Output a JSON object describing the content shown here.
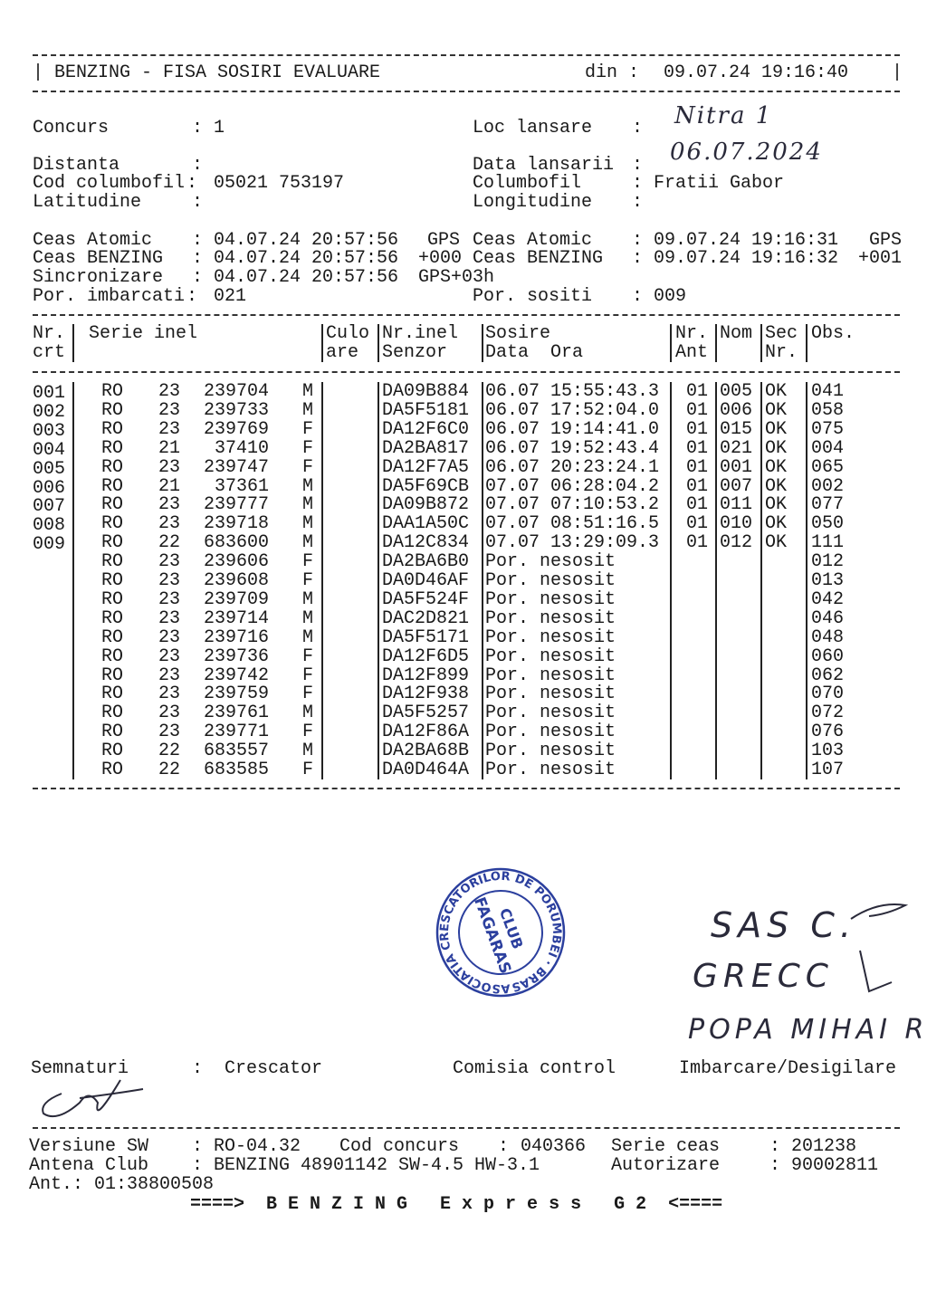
{
  "header": {
    "title": "BENZING - FISA SOSIRI EVALUARE",
    "din_label": "din :",
    "din_value": "09.07.24 19:16:40"
  },
  "info": {
    "concurs_label": "Concurs",
    "concurs_value": "1",
    "loc_lansare_label": "Loc lansare",
    "loc_lansare_value": "Nitra 1",
    "distanta_label": "Distanta",
    "distanta_value": "",
    "data_lansarii_label": "Data lansarii",
    "data_lansarii_value": "06.07.2024",
    "cod_columbofil_label": "Cod columbofil",
    "cod_columbofil_value": "05021 753197",
    "columbofil_label": "Columbofil",
    "columbofil_value": "Fratii Gabor",
    "latitudine_label": "Latitudine",
    "latitudine_value": "",
    "longitudine_label": "Longitudine",
    "longitudine_value": ""
  },
  "clocks": {
    "left": [
      {
        "label": "Ceas Atomic",
        "value": "04.07.24 20:57:56",
        "suffix": "GPS"
      },
      {
        "label": "Ceas BENZING",
        "value": "04.07.24 20:57:56",
        "suffix": "+000"
      },
      {
        "label": "Sincronizare",
        "value": "04.07.24 20:57:56",
        "suffix": "GPS+03h"
      },
      {
        "label": "Por. imbarcati",
        "value": "021",
        "suffix": ""
      }
    ],
    "right": [
      {
        "label": "Ceas Atomic",
        "value": "09.07.24 19:16:31",
        "suffix": "GPS"
      },
      {
        "label": "Ceas BENZING",
        "value": "09.07.24 19:16:32",
        "suffix": "+001"
      },
      {
        "label": "Por. sositi",
        "value": "009",
        "suffix": ""
      }
    ]
  },
  "table": {
    "headers": {
      "nr1": "Nr.",
      "nr2": "crt",
      "serie": "Serie inel",
      "culo1": "Culo",
      "culo2": "are",
      "inel1": "Nr.inel",
      "inel2": "Senzor",
      "sosire1": "Sosire",
      "sosire2": "Data  Ora",
      "ant1": "Nr.",
      "ant2": "Ant",
      "nom": "Nom",
      "sec1": "Sec",
      "sec2": "Nr.",
      "obs": "Obs."
    },
    "rows": [
      {
        "nr": "001",
        "country": "RO",
        "year": "23",
        "ring": "239704",
        "sex": "M",
        "color": "",
        "sensor": "DA09B884",
        "sosire": "06.07 15:55:43.3",
        "ant": "01",
        "nom": "005",
        "sec": "OK",
        "obs": "041"
      },
      {
        "nr": "002",
        "country": "RO",
        "year": "23",
        "ring": "239733",
        "sex": "M",
        "color": "",
        "sensor": "DA5F5181",
        "sosire": "06.07 17:52:04.0",
        "ant": "01",
        "nom": "006",
        "sec": "OK",
        "obs": "058"
      },
      {
        "nr": "003",
        "country": "RO",
        "year": "23",
        "ring": "239769",
        "sex": "F",
        "color": "",
        "sensor": "DA12F6C0",
        "sosire": "06.07 19:14:41.0",
        "ant": "01",
        "nom": "015",
        "sec": "OK",
        "obs": "075"
      },
      {
        "nr": "004",
        "country": "RO",
        "year": "21",
        "ring": "37410",
        "sex": "F",
        "color": "",
        "sensor": "DA2BA817",
        "sosire": "06.07 19:52:43.4",
        "ant": "01",
        "nom": "021",
        "sec": "OK",
        "obs": "004"
      },
      {
        "nr": "005",
        "country": "RO",
        "year": "23",
        "ring": "239747",
        "sex": "F",
        "color": "",
        "sensor": "DA12F7A5",
        "sosire": "06.07 20:23:24.1",
        "ant": "01",
        "nom": "001",
        "sec": "OK",
        "obs": "065"
      },
      {
        "nr": "006",
        "country": "RO",
        "year": "21",
        "ring": "37361",
        "sex": "M",
        "color": "",
        "sensor": "DA5F69CB",
        "sosire": "07.07 06:28:04.2",
        "ant": "01",
        "nom": "007",
        "sec": "OK",
        "obs": "002"
      },
      {
        "nr": "007",
        "country": "RO",
        "year": "23",
        "ring": "239777",
        "sex": "M",
        "color": "",
        "sensor": "DA09B872",
        "sosire": "07.07 07:10:53.2",
        "ant": "01",
        "nom": "011",
        "sec": "OK",
        "obs": "077"
      },
      {
        "nr": "008",
        "country": "RO",
        "year": "23",
        "ring": "239718",
        "sex": "M",
        "color": "",
        "sensor": "DAA1A50C",
        "sosire": "07.07 08:51:16.5",
        "ant": "01",
        "nom": "010",
        "sec": "OK",
        "obs": "050"
      },
      {
        "nr": "009",
        "country": "RO",
        "year": "22",
        "ring": "683600",
        "sex": "M",
        "color": "",
        "sensor": "DA12C834",
        "sosire": "07.07 13:29:09.3",
        "ant": "01",
        "nom": "012",
        "sec": "OK",
        "obs": "111"
      },
      {
        "nr": "",
        "country": "RO",
        "year": "23",
        "ring": "239606",
        "sex": "F",
        "color": "",
        "sensor": "DA2BA6B0",
        "sosire": "Por. nesosit",
        "ant": "",
        "nom": "",
        "sec": "",
        "obs": "012"
      },
      {
        "nr": "",
        "country": "RO",
        "year": "23",
        "ring": "239608",
        "sex": "F",
        "color": "",
        "sensor": "DA0D46AF",
        "sosire": "Por. nesosit",
        "ant": "",
        "nom": "",
        "sec": "",
        "obs": "013"
      },
      {
        "nr": "",
        "country": "RO",
        "year": "23",
        "ring": "239709",
        "sex": "M",
        "color": "",
        "sensor": "DA5F524F",
        "sosire": "Por. nesosit",
        "ant": "",
        "nom": "",
        "sec": "",
        "obs": "042"
      },
      {
        "nr": "",
        "country": "RO",
        "year": "23",
        "ring": "239714",
        "sex": "M",
        "color": "",
        "sensor": "DAC2D821",
        "sosire": "Por. nesosit",
        "ant": "",
        "nom": "",
        "sec": "",
        "obs": "046"
      },
      {
        "nr": "",
        "country": "RO",
        "year": "23",
        "ring": "239716",
        "sex": "M",
        "color": "",
        "sensor": "DA5F5171",
        "sosire": "Por. nesosit",
        "ant": "",
        "nom": "",
        "sec": "",
        "obs": "048"
      },
      {
        "nr": "",
        "country": "RO",
        "year": "23",
        "ring": "239736",
        "sex": "F",
        "color": "",
        "sensor": "DA12F6D5",
        "sosire": "Por. nesosit",
        "ant": "",
        "nom": "",
        "sec": "",
        "obs": "060"
      },
      {
        "nr": "",
        "country": "RO",
        "year": "23",
        "ring": "239742",
        "sex": "F",
        "color": "",
        "sensor": "DA12F899",
        "sosire": "Por. nesosit",
        "ant": "",
        "nom": "",
        "sec": "",
        "obs": "062"
      },
      {
        "nr": "",
        "country": "RO",
        "year": "23",
        "ring": "239759",
        "sex": "F",
        "color": "",
        "sensor": "DA12F938",
        "sosire": "Por. nesosit",
        "ant": "",
        "nom": "",
        "sec": "",
        "obs": "070"
      },
      {
        "nr": "",
        "country": "RO",
        "year": "23",
        "ring": "239761",
        "sex": "M",
        "color": "",
        "sensor": "DA5F5257",
        "sosire": "Por. nesosit",
        "ant": "",
        "nom": "",
        "sec": "",
        "obs": "072"
      },
      {
        "nr": "",
        "country": "RO",
        "year": "23",
        "ring": "239771",
        "sex": "F",
        "color": "",
        "sensor": "DA12F86A",
        "sosire": "Por. nesosit",
        "ant": "",
        "nom": "",
        "sec": "",
        "obs": "076"
      },
      {
        "nr": "",
        "country": "RO",
        "year": "22",
        "ring": "683557",
        "sex": "M",
        "color": "",
        "sensor": "DA2BA68B",
        "sosire": "Por. nesosit",
        "ant": "",
        "nom": "",
        "sec": "",
        "obs": "103"
      },
      {
        "nr": "",
        "country": "RO",
        "year": "22",
        "ring": "683585",
        "sex": "F",
        "color": "",
        "sensor": "DA0D464A",
        "sosire": "Por. nesosit",
        "ant": "",
        "nom": "",
        "sec": "",
        "obs": "107"
      }
    ]
  },
  "stamp": {
    "outer_text": "ASOCIATIA CRESCATORILOR DE PORUMBEI",
    "club": "CLUB",
    "city": "FAGARAS",
    "region": "BRASOV"
  },
  "handwritten_signatures": [
    "SAS C.",
    "GRECC",
    "POPA MIHAI R"
  ],
  "signatures": {
    "label": "Semnaturi",
    "crescator": "Crescator",
    "comisia": "Comisia control",
    "imbarcare": "Imbarcare/Desigilare"
  },
  "footer": {
    "versiune_label": "Versiune SW",
    "versiune_value": "RO-04.32",
    "cod_concurs_label": "Cod concurs",
    "cod_concurs_value": "040366",
    "serie_ceas_label": "Serie ceas",
    "serie_ceas_value": "201238",
    "antena_label": "Antena Club",
    "antena_value": "BENZING 48901142 SW-4.5 HW-3.1",
    "autorizare_label": "Autorizare",
    "autorizare_value": "90002811",
    "ant_line": "Ant.: 01:38800508",
    "banner": "====>  B E N Z I N G   E x p r e s s   G 2  <===="
  },
  "colors": {
    "ink": "#1a1a1a",
    "stamp": "#2b3f9e",
    "paper": "#ffffff"
  }
}
